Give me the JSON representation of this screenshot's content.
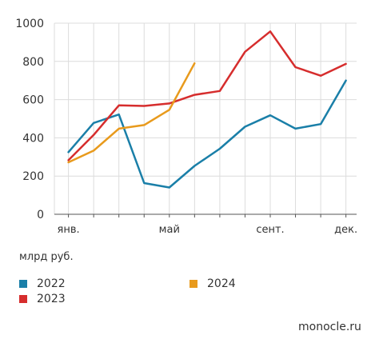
{
  "chart_data": {
    "type": "line",
    "x_tick_labels": [
      "янв.",
      "май",
      "сент.",
      "дек."
    ],
    "x_tick_months": [
      1,
      5,
      9,
      12
    ],
    "ylim": [
      0,
      1000
    ],
    "yticks": [
      0,
      200,
      400,
      600,
      800,
      1000
    ],
    "grid": true,
    "unit_label": "млрд руб.",
    "legend_position": "bottom",
    "series": [
      {
        "name": "2022",
        "color": "#1a7fa8",
        "values": [
          325,
          478,
          522,
          163,
          140,
          253,
          343,
          458,
          518,
          448,
          472,
          700
        ]
      },
      {
        "name": "2023",
        "color": "#d62d2d",
        "values": [
          283,
          415,
          570,
          567,
          580,
          625,
          645,
          850,
          957,
          770,
          725,
          787
        ]
      },
      {
        "name": "2024",
        "color": "#e89a1c",
        "values": [
          272,
          333,
          448,
          467,
          547,
          790
        ]
      }
    ]
  },
  "legend": [
    {
      "label": "2022",
      "color": "#1a7fa8"
    },
    {
      "label": "2024",
      "color": "#e89a1c"
    },
    {
      "label": "2023",
      "color": "#d62d2d"
    }
  ],
  "source": "monocle.ru"
}
